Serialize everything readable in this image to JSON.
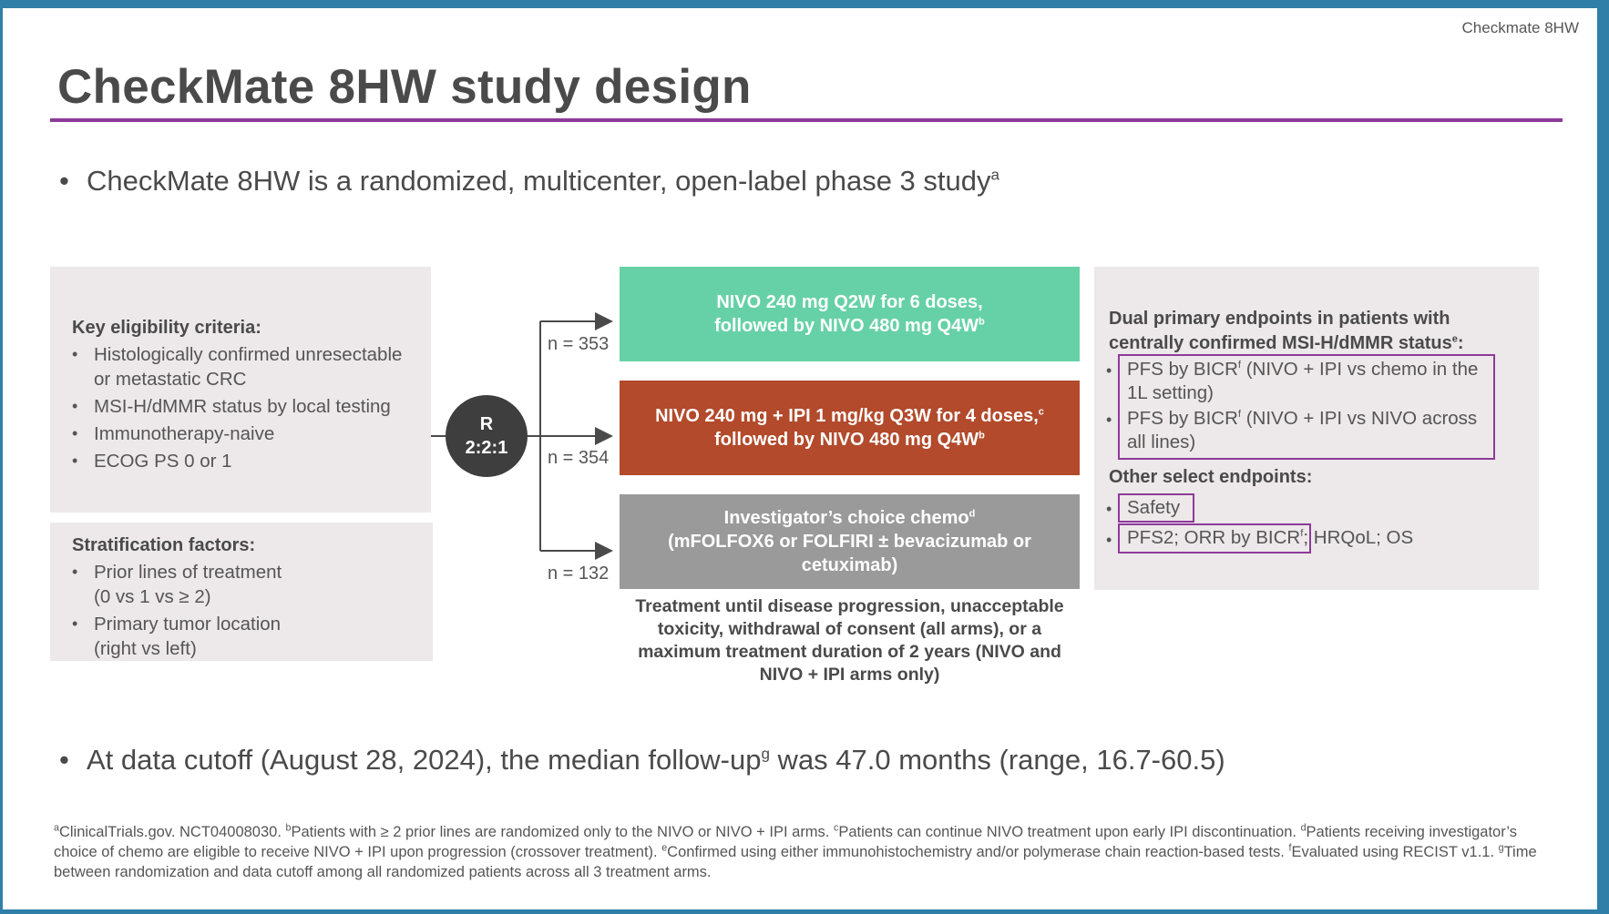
{
  "header_tag": "Checkmate 8HW",
  "title": "CheckMate 8HW study design",
  "intro_bullet": {
    "text": "CheckMate 8HW is a randomized, multicenter, open-label phase 3 study",
    "sup": "a"
  },
  "eligibility": {
    "heading": "Key eligibility criteria:",
    "items": [
      "Histologically confirmed unresectable or metastatic CRC",
      "MSI-H/dMMR status by local testing",
      "Immunotherapy-naive",
      "ECOG PS 0 or 1"
    ]
  },
  "stratification": {
    "heading": "Stratification factors:",
    "items": [
      "Prior lines of treatment (0 vs 1 vs ≥ 2)",
      "Primary tumor location (right vs left)"
    ]
  },
  "randomization": {
    "letter": "R",
    "ratio": "2:2:1"
  },
  "arms": [
    {
      "n": "n = 353",
      "line1": "NIVO 240 mg Q2W for 6 doses,",
      "line2": "followed by NIVO 480 mg Q4W",
      "sup1": "",
      "sup2": "b",
      "color": "#66d1a6"
    },
    {
      "n": "n = 354",
      "line1": "NIVO 240 mg + IPI 1 mg/kg Q3W for 4 doses,",
      "line2": "followed by NIVO 480 mg Q4W",
      "sup1": "c",
      "sup2": "b",
      "color": "#b24a2b"
    },
    {
      "n": "n = 132",
      "line1": "Investigator’s choice chemo",
      "line2": "(mFOLFOX6 or FOLFIRI ± bevacizumab or cetuximab)",
      "sup1": "d",
      "sup2": "",
      "color": "#9a9a9a"
    }
  ],
  "treatment_note": "Treatment until disease progression, unacceptable toxicity, withdrawal of consent (all arms), or a maximum treatment duration of 2 years (NIVO and NIVO + IPI arms only)",
  "endpoints": {
    "primary_heading": "Dual primary endpoints in patients with centrally confirmed MSI-H/dMMR status",
    "primary_heading_sup": "e",
    "primary_items": [
      {
        "pre": "PFS by BICR",
        "sup": "f",
        "post": " (NIVO + IPI vs chemo in the 1L setting)"
      },
      {
        "pre": "PFS by BICR",
        "sup": "f",
        "post": " (NIVO + IPI vs NIVO across all lines)"
      }
    ],
    "other_heading": "Other select endpoints:",
    "safety": "Safety",
    "other_boxed": "PFS2; ORR by BICR",
    "other_boxed_sup": "f",
    "other_tail": "; HRQoL; OS"
  },
  "followup_bullet": {
    "pre": "At data cutoff (August 28, 2024), the median follow-up",
    "sup": "g",
    "post": " was 47.0 months (range, 16.7-60.5)"
  },
  "footnotes": [
    {
      "sup": "a",
      "text": "ClinicalTrials.gov. NCT04008030. "
    },
    {
      "sup": "b",
      "text": "Patients with ≥ 2 prior lines are randomized only to the NIVO or NIVO + IPI arms. "
    },
    {
      "sup": "c",
      "text": "Patients can continue NIVO treatment upon early IPI discontinuation. "
    },
    {
      "sup": "d",
      "text": "Patients receiving investigator’s choice of chemo are eligible to receive NIVO + IPI upon progression (crossover treatment). "
    },
    {
      "sup": "e",
      "text": "Confirmed using either immunohistochemistry and/or polymerase chain reaction-based tests. "
    },
    {
      "sup": "f",
      "text": "Evaluated using RECIST v1.1. "
    },
    {
      "sup": "g",
      "text": "Time between randomization and data cutoff among all randomized patients across all 3 treatment arms."
    }
  ]
}
